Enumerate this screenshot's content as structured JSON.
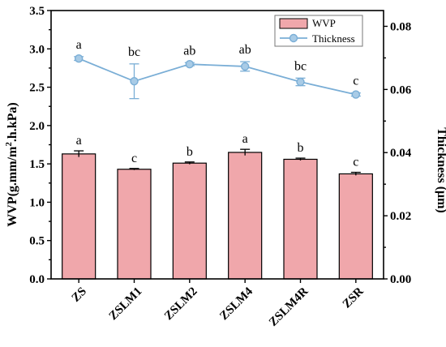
{
  "chart_data": {
    "type": "bar",
    "categories": [
      "ZS",
      "ZSLM1",
      "ZSLM2",
      "ZSLM4",
      "ZSLM4R",
      "ZSR"
    ],
    "series": [
      {
        "name": "WVP",
        "type": "bar",
        "axis": "left",
        "color": "#f0a7ab",
        "values": [
          1.63,
          1.43,
          1.51,
          1.65,
          1.56,
          1.37
        ],
        "errors": [
          0.04,
          0.01,
          0.015,
          0.04,
          0.015,
          0.02
        ],
        "labels": [
          "a",
          "c",
          "b",
          "a",
          "b",
          "c"
        ]
      },
      {
        "name": "Thickness",
        "type": "line",
        "axis": "right",
        "color": "#7aaed6",
        "values": [
          0.0698,
          0.0626,
          0.068,
          0.0673,
          0.0624,
          0.0584
        ],
        "errors": [
          0.0006,
          0.0055,
          0.0005,
          0.0015,
          0.0012,
          0.0005
        ],
        "labels": [
          "a",
          "bc",
          "ab",
          "ab",
          "bc",
          "c"
        ]
      }
    ],
    "ylabel_left": "WVP(g.mm/m2.h.kPa)",
    "ylabel_left_main": "WVP(g.mm/m",
    "ylabel_left_sup": "2",
    "ylabel_left_tail": ".h.kPa)",
    "ylabel_right": "Thickness (μm)",
    "ylim_left": [
      0,
      3.5
    ],
    "ylim_right": [
      0,
      0.085
    ],
    "yticks_left": [
      "0.0",
      "0.5",
      "1.0",
      "1.5",
      "2.0",
      "2.5",
      "3.0",
      "3.5"
    ],
    "yticks_right": [
      "0.00",
      "0.02",
      "0.04",
      "0.06",
      "0.08"
    ],
    "legend": {
      "position": "top-right",
      "entries": [
        "WVP",
        "Thickness"
      ]
    },
    "grid": false
  }
}
